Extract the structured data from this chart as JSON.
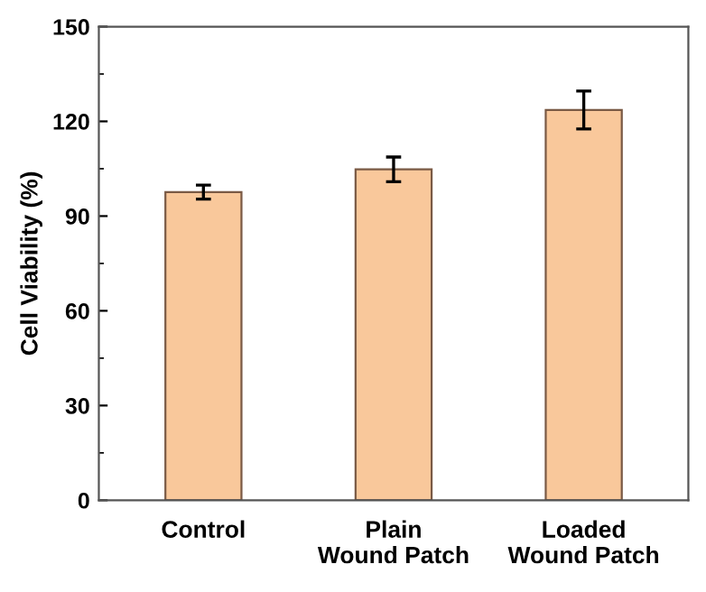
{
  "chart_data": {
    "type": "bar",
    "ylabel": "Cell Viability (%)",
    "categories": [
      "Control",
      "Plain\nWound Patch",
      "Loaded\nWound Patch"
    ],
    "values": [
      97.6,
      104.8,
      123.6
    ],
    "errors": [
      2.2,
      3.9,
      6.0
    ],
    "color": "#f9c89b",
    "ylim": [
      0,
      150
    ],
    "yticks": [
      0,
      30,
      60,
      90,
      120,
      150
    ],
    "grid": false
  }
}
